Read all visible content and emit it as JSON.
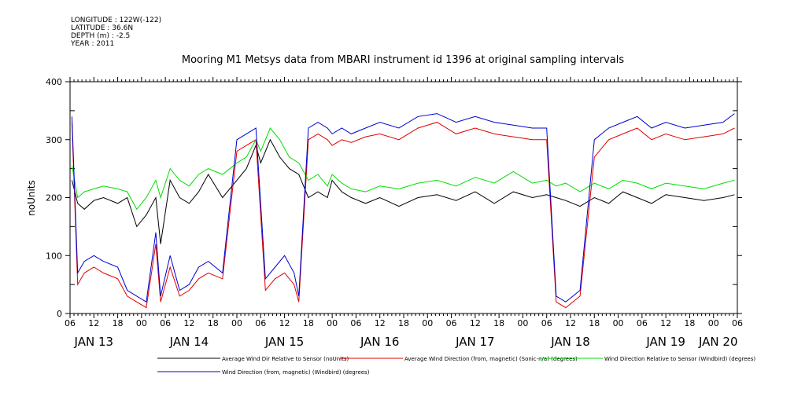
{
  "meta": {
    "longitude": "LONGITUDE : 122W(-122)",
    "latitude": "LATITUDE : 36.6N",
    "depth": "DEPTH (m) : -2.5",
    "year": "YEAR : 2011"
  },
  "chart_data": {
    "type": "line",
    "title": "Mooring M1 Metsys data from MBARI instrument id 1396 at original sampling intervals",
    "ylabel": "noUnits",
    "xlabel": "",
    "ylim": [
      0,
      400
    ],
    "yticks": [
      0,
      100,
      200,
      300,
      400
    ],
    "xlim": [
      0.25,
      7.25
    ],
    "x_unit": "days since JAN 13 00:00 (2011)",
    "hour_tick_labels": [
      "06",
      "12",
      "18",
      "00",
      "06",
      "12",
      "18",
      "00",
      "06",
      "12",
      "18",
      "00",
      "06",
      "12",
      "18",
      "00",
      "06",
      "12",
      "18",
      "00",
      "06",
      "12",
      "18",
      "00",
      "06",
      "12",
      "18",
      "00",
      "06"
    ],
    "day_labels": [
      "JAN 13",
      "JAN 14",
      "JAN 15",
      "JAN 16",
      "JAN 17",
      "JAN 18",
      "JAN 19",
      "JAN 20"
    ],
    "grid": false,
    "legend_position": "bottom",
    "series": [
      {
        "name": "Average Wind Dir Relative to Sensor (noUnits)",
        "color": "#000000",
        "x": [
          0.27,
          0.33,
          0.4,
          0.5,
          0.6,
          0.75,
          0.85,
          0.95,
          1.05,
          1.15,
          1.2,
          1.3,
          1.4,
          1.5,
          1.6,
          1.7,
          1.85,
          2.0,
          2.1,
          2.2,
          2.25,
          2.35,
          2.45,
          2.55,
          2.65,
          2.75,
          2.85,
          2.95,
          3.0,
          3.1,
          3.2,
          3.35,
          3.5,
          3.7,
          3.9,
          4.1,
          4.3,
          4.5,
          4.7,
          4.9,
          5.1,
          5.25,
          5.35,
          5.45,
          5.6,
          5.75,
          5.9,
          6.05,
          6.2,
          6.35,
          6.5,
          6.7,
          6.9,
          7.1,
          7.22
        ],
        "y": [
          230,
          190,
          180,
          195,
          200,
          190,
          200,
          150,
          170,
          200,
          120,
          230,
          200,
          190,
          210,
          240,
          200,
          230,
          250,
          290,
          260,
          300,
          270,
          250,
          240,
          200,
          210,
          200,
          230,
          210,
          200,
          190,
          200,
          185,
          200,
          205,
          195,
          210,
          190,
          210,
          200,
          205,
          200,
          195,
          185,
          200,
          190,
          210,
          200,
          190,
          205,
          200,
          195,
          200,
          205
        ]
      },
      {
        "name": "Average Wind Direction (from, magnetic) (Sonic-n/a) (degrees)",
        "color": "#e00000",
        "x": [
          0.27,
          0.33,
          0.4,
          0.5,
          0.6,
          0.75,
          0.85,
          0.95,
          1.05,
          1.15,
          1.2,
          1.3,
          1.4,
          1.5,
          1.6,
          1.7,
          1.85,
          2.0,
          2.1,
          2.2,
          2.3,
          2.4,
          2.5,
          2.6,
          2.65,
          2.75,
          2.85,
          2.95,
          3.0,
          3.1,
          3.2,
          3.35,
          3.5,
          3.7,
          3.9,
          4.1,
          4.3,
          4.5,
          4.7,
          4.9,
          5.1,
          5.25,
          5.35,
          5.45,
          5.6,
          5.75,
          5.9,
          6.05,
          6.2,
          6.35,
          6.5,
          6.7,
          6.9,
          7.1,
          7.22
        ],
        "y": [
          330,
          50,
          70,
          80,
          70,
          60,
          30,
          20,
          10,
          120,
          20,
          80,
          30,
          40,
          60,
          70,
          60,
          280,
          290,
          300,
          40,
          60,
          70,
          50,
          20,
          300,
          310,
          300,
          290,
          300,
          295,
          305,
          310,
          300,
          320,
          330,
          310,
          320,
          310,
          305,
          300,
          300,
          20,
          10,
          30,
          270,
          300,
          310,
          320,
          300,
          310,
          300,
          305,
          310,
          320
        ]
      },
      {
        "name": "Wind Direction Relative to Sensor (Windbird) (degrees)",
        "color": "#00e000",
        "x": [
          0.27,
          0.33,
          0.4,
          0.5,
          0.6,
          0.75,
          0.85,
          0.95,
          1.05,
          1.15,
          1.2,
          1.3,
          1.4,
          1.5,
          1.6,
          1.7,
          1.85,
          2.0,
          2.1,
          2.2,
          2.25,
          2.35,
          2.45,
          2.55,
          2.65,
          2.75,
          2.85,
          2.95,
          3.0,
          3.1,
          3.2,
          3.35,
          3.5,
          3.7,
          3.9,
          4.1,
          4.3,
          4.5,
          4.7,
          4.9,
          5.1,
          5.25,
          5.35,
          5.45,
          5.6,
          5.75,
          5.9,
          6.05,
          6.2,
          6.35,
          6.5,
          6.7,
          6.9,
          7.1,
          7.22
        ],
        "y": [
          255,
          200,
          210,
          215,
          220,
          215,
          210,
          180,
          200,
          230,
          200,
          250,
          230,
          220,
          240,
          250,
          240,
          260,
          270,
          300,
          280,
          320,
          300,
          270,
          260,
          230,
          240,
          220,
          240,
          225,
          215,
          210,
          220,
          215,
          225,
          230,
          220,
          235,
          225,
          245,
          225,
          230,
          220,
          225,
          210,
          225,
          215,
          230,
          225,
          215,
          225,
          220,
          215,
          225,
          230
        ]
      },
      {
        "name": "Wind Direction (from, magnetic) (Windbird) (degrees)",
        "color": "#0000d0",
        "x": [
          0.27,
          0.33,
          0.4,
          0.5,
          0.6,
          0.75,
          0.85,
          0.95,
          1.05,
          1.15,
          1.2,
          1.3,
          1.4,
          1.5,
          1.6,
          1.7,
          1.85,
          2.0,
          2.1,
          2.2,
          2.3,
          2.4,
          2.5,
          2.6,
          2.65,
          2.75,
          2.85,
          2.95,
          3.0,
          3.1,
          3.2,
          3.35,
          3.5,
          3.7,
          3.9,
          4.1,
          4.3,
          4.5,
          4.7,
          4.9,
          5.1,
          5.25,
          5.35,
          5.45,
          5.6,
          5.75,
          5.9,
          6.05,
          6.2,
          6.35,
          6.5,
          6.7,
          6.9,
          7.1,
          7.22
        ],
        "y": [
          340,
          70,
          90,
          100,
          90,
          80,
          40,
          30,
          20,
          140,
          30,
          100,
          40,
          50,
          80,
          90,
          70,
          300,
          310,
          320,
          60,
          80,
          100,
          70,
          30,
          320,
          330,
          320,
          310,
          320,
          310,
          320,
          330,
          320,
          340,
          345,
          330,
          340,
          330,
          325,
          320,
          320,
          30,
          20,
          40,
          300,
          320,
          330,
          340,
          320,
          330,
          320,
          325,
          330,
          345
        ]
      }
    ]
  }
}
